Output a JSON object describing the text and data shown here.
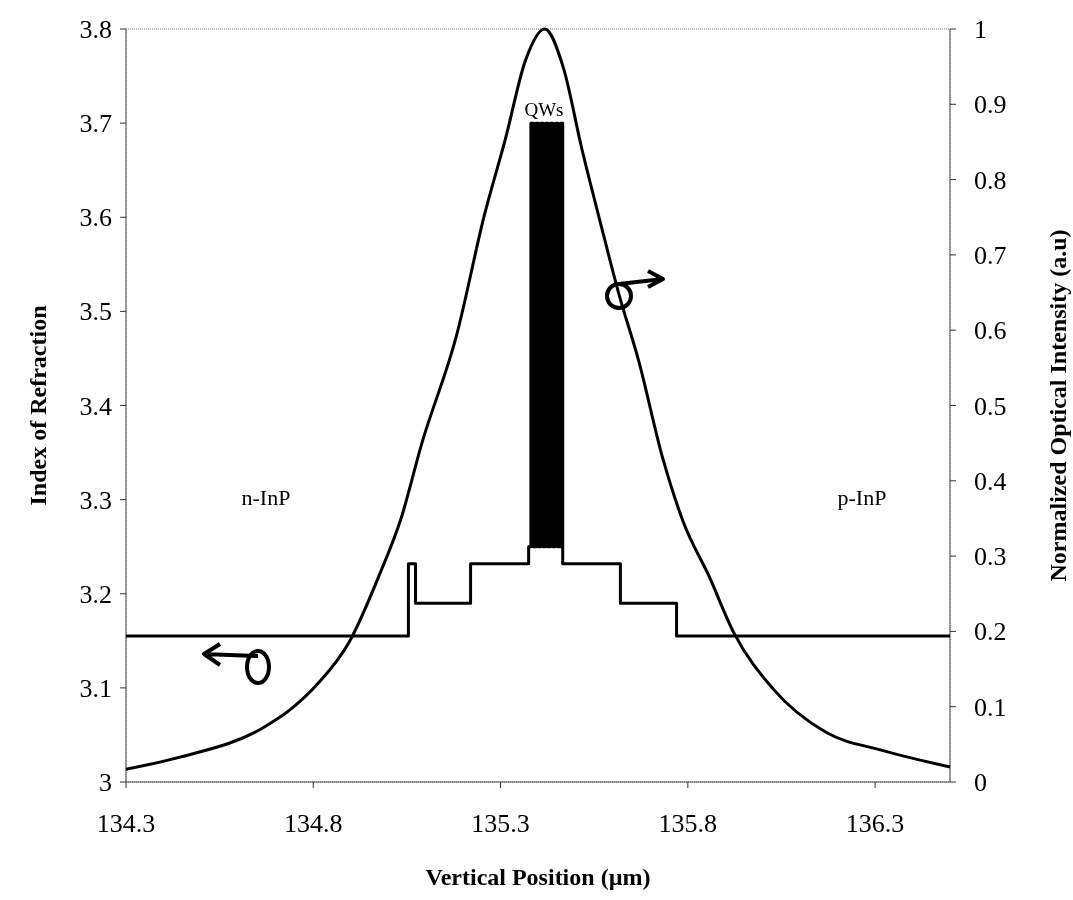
{
  "chart_data": {
    "type": "line",
    "xlabel": "Vertical Position (µm)",
    "ylabel": "Index of Refraction",
    "y2label": "Normalized Optical Intensity (a.u)",
    "xlim": [
      134.3,
      136.5
    ],
    "xticks": [
      134.3,
      134.8,
      135.3,
      135.8,
      136.3
    ],
    "ylim": [
      3,
      3.8
    ],
    "yticks": [
      3,
      3.1,
      3.2,
      3.3,
      3.4,
      3.5,
      3.6,
      3.7,
      3.8
    ],
    "y2lim": [
      0,
      1
    ],
    "y2ticks": [
      0,
      0.1,
      0.2,
      0.3,
      0.4,
      0.5,
      0.6,
      0.7,
      0.8,
      0.9,
      1
    ],
    "grid": false,
    "series": [
      {
        "axis": "y",
        "color": "#000000",
        "x": [
          134.3,
          135.054,
          135.054,
          135.073,
          135.073,
          135.22,
          135.22,
          135.375,
          135.375,
          135.381,
          135.381,
          135.388,
          135.388,
          135.394,
          135.394,
          135.401,
          135.401,
          135.407,
          135.407,
          135.414,
          135.414,
          135.42,
          135.42,
          135.427,
          135.427,
          135.433,
          135.433,
          135.44,
          135.44,
          135.446,
          135.446,
          135.453,
          135.453,
          135.459,
          135.459,
          135.466,
          135.466,
          135.62,
          135.62,
          135.77,
          135.77,
          136.5
        ],
        "values": [
          3.155,
          3.155,
          3.232,
          3.232,
          3.19,
          3.19,
          3.232,
          3.232,
          3.25,
          3.25,
          3.7,
          3.7,
          3.25,
          3.25,
          3.7,
          3.7,
          3.25,
          3.25,
          3.7,
          3.7,
          3.25,
          3.25,
          3.7,
          3.7,
          3.25,
          3.25,
          3.7,
          3.7,
          3.25,
          3.25,
          3.7,
          3.7,
          3.25,
          3.25,
          3.7,
          3.7,
          3.232,
          3.232,
          3.19,
          3.19,
          3.155,
          3.155
        ]
      },
      {
        "axis": "y2",
        "color": "#000000",
        "x": [
          134.3,
          134.444,
          134.666,
          134.741,
          134.813,
          134.896,
          134.979,
          135.035,
          135.09,
          135.182,
          135.257,
          135.313,
          135.367,
          135.418,
          135.468,
          135.517,
          135.565,
          135.616,
          135.669,
          135.733,
          135.789,
          135.856,
          135.923,
          136.027,
          136.169,
          136.319,
          136.5
        ],
        "values": [
          0.017,
          0.033,
          0.072,
          0.097,
          0.131,
          0.186,
          0.278,
          0.351,
          0.45,
          0.592,
          0.753,
          0.854,
          0.959,
          1,
          0.948,
          0.841,
          0.746,
          0.648,
          0.559,
          0.43,
          0.344,
          0.274,
          0.198,
          0.124,
          0.066,
          0.042,
          0.02
        ]
      }
    ],
    "annotations": [
      "QWs",
      "n-InP",
      "p-InP"
    ]
  }
}
